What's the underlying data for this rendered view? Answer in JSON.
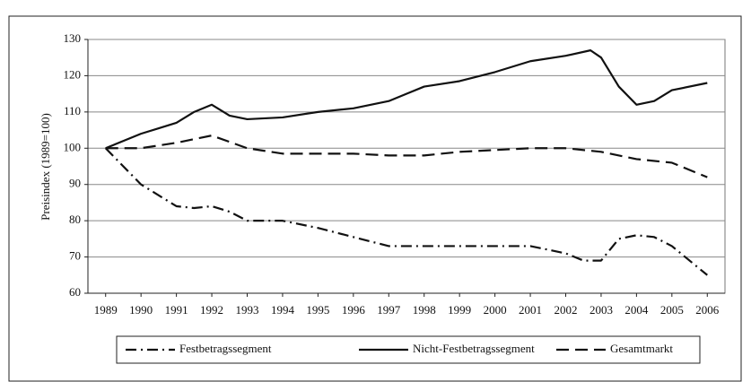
{
  "chart_data": {
    "type": "line",
    "ylabel": "Preisindex (1989=100)",
    "xlim": [
      1988.5,
      2006.5
    ],
    "xticks": [
      1989,
      1990,
      1991,
      1992,
      1993,
      1994,
      1995,
      1996,
      1997,
      1998,
      1999,
      2000,
      2001,
      2002,
      2003,
      2004,
      2005,
      2006
    ],
    "ylim": [
      60,
      130
    ],
    "yticks": [
      60,
      70,
      80,
      90,
      100,
      110,
      120,
      130
    ],
    "grid": true,
    "legend": "bottom",
    "series": [
      {
        "name": "Festbetragssegment",
        "color": "#111111",
        "dash": "dashdot",
        "x": [
          1989,
          1990,
          1991,
          1991.5,
          1992,
          1992.5,
          1993,
          1994,
          1995,
          1996,
          1997,
          1998,
          1999,
          2000,
          2001,
          2002,
          2002.5,
          2003,
          2003.5,
          2004,
          2004.5,
          2005,
          2006
        ],
        "values": [
          100,
          90,
          84,
          83.5,
          84,
          82.5,
          80,
          80,
          78,
          75.5,
          73,
          73,
          73,
          73,
          73,
          71,
          69,
          69,
          75,
          76,
          75.5,
          73,
          65
        ]
      },
      {
        "name": "Nicht-Festbetragssegment",
        "color": "#111111",
        "dash": "solid",
        "x": [
          1989,
          1990,
          1990.5,
          1991,
          1991.5,
          1992,
          1992.5,
          1993,
          1994,
          1995,
          1996,
          1997,
          1997.5,
          1998,
          1999,
          2000,
          2001,
          2002,
          2002.7,
          2003,
          2003.5,
          2004,
          2004.5,
          2005,
          2006
        ],
        "values": [
          100,
          104,
          105.5,
          107,
          110,
          112,
          109,
          108,
          108.5,
          110,
          111,
          113,
          115,
          117,
          118.5,
          121,
          124,
          125.5,
          127,
          125,
          117,
          112,
          113,
          116,
          118
        ]
      },
      {
        "name": "Gesamtmarkt",
        "color": "#111111",
        "dash": "dash",
        "x": [
          1989,
          1990,
          1991,
          1992,
          1993,
          1994,
          1995,
          1996,
          1997,
          1998,
          1999,
          2000,
          2001,
          2002,
          2003,
          2004,
          2005,
          2006
        ],
        "values": [
          100,
          100,
          101.5,
          103.5,
          100,
          98.5,
          98.5,
          98.5,
          98,
          98,
          99,
          99.5,
          100,
          100,
          99,
          97,
          96,
          92
        ]
      }
    ]
  }
}
